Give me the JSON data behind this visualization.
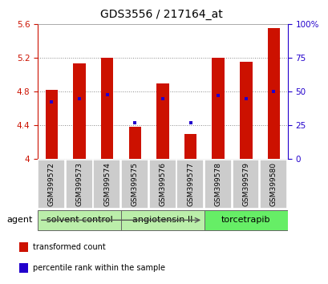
{
  "title": "GDS3556 / 217164_at",
  "samples": [
    "GSM399572",
    "GSM399573",
    "GSM399574",
    "GSM399575",
    "GSM399576",
    "GSM399577",
    "GSM399578",
    "GSM399579",
    "GSM399580"
  ],
  "bar_values": [
    4.82,
    5.13,
    5.2,
    4.38,
    4.9,
    4.3,
    5.2,
    5.15,
    5.55
  ],
  "bar_bottom": 4.0,
  "percentile_values": [
    4.68,
    4.72,
    4.76,
    4.43,
    4.72,
    4.43,
    4.75,
    4.72,
    4.8
  ],
  "ylim": [
    4.0,
    5.6
  ],
  "yticks_left": [
    4.0,
    4.4,
    4.8,
    5.2,
    5.6
  ],
  "ytick_labels_left": [
    "4",
    "4.4",
    "4.8",
    "5.2",
    "5.6"
  ],
  "right_ytick_pcts": [
    0,
    25,
    50,
    75,
    100
  ],
  "right_ytick_labels": [
    "0",
    "25",
    "50",
    "75",
    "100%"
  ],
  "grid_yticks": [
    4.4,
    4.8,
    5.2
  ],
  "bar_color": "#cc1100",
  "percentile_color": "#2200cc",
  "grid_color": "#888888",
  "sample_box_color": "#cccccc",
  "groups": [
    {
      "label": "solvent control",
      "indices": [
        0,
        1,
        2
      ],
      "color": "#bbeeaa"
    },
    {
      "label": "angiotensin II",
      "indices": [
        3,
        4,
        5
      ],
      "color": "#bbeeaa"
    },
    {
      "label": "torcetrapib",
      "indices": [
        6,
        7,
        8
      ],
      "color": "#66ee66"
    }
  ],
  "agent_label": "agent",
  "legend_items": [
    {
      "label": "transformed count",
      "color": "#cc1100"
    },
    {
      "label": "percentile rank within the sample",
      "color": "#2200cc"
    }
  ],
  "left_tick_color": "#cc1100",
  "right_tick_color": "#2200cc",
  "title_fontsize": 10,
  "tick_fontsize": 7.5,
  "sample_fontsize": 6.5,
  "group_fontsize": 8,
  "legend_fontsize": 7,
  "agent_fontsize": 8,
  "bar_width": 0.45
}
